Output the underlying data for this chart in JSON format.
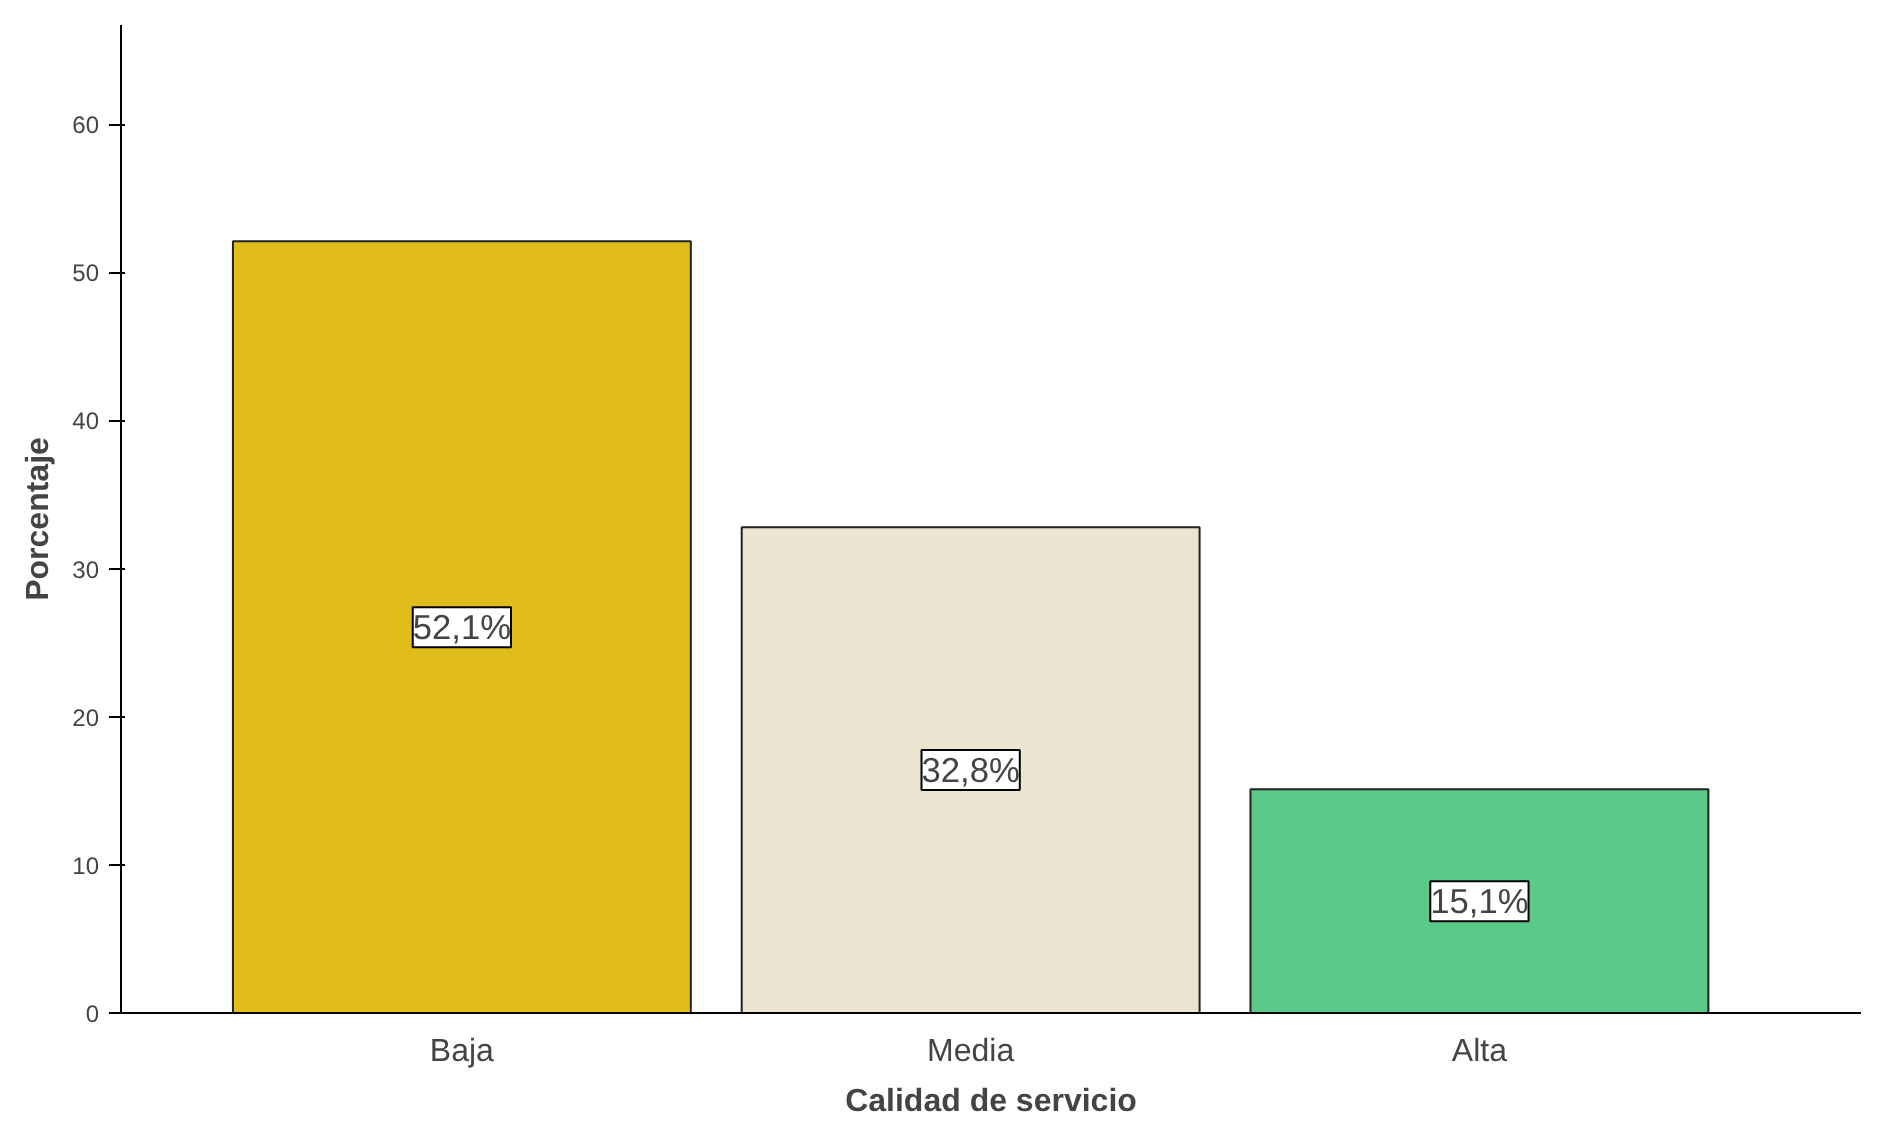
{
  "chart_data": {
    "type": "bar",
    "xlabel": "Calidad de servicio",
    "ylabel": "Porcentaje",
    "categories": [
      "Baja",
      "Media",
      "Alta"
    ],
    "values": [
      52.1,
      32.8,
      15.1
    ],
    "colors": [
      "#e0bc1c",
      "#ebe4d0",
      "#5bc98a"
    ],
    "value_labels": [
      "52,1%",
      "32,8%",
      "15,1%"
    ],
    "ylim": [
      0,
      66.7
    ],
    "yticks": [
      0,
      10,
      20,
      30,
      40,
      50,
      60
    ],
    "grid": false
  }
}
